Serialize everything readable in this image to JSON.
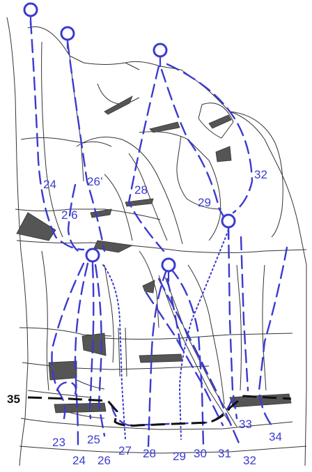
{
  "labels": {
    "r24_top": "24",
    "r26p": "26’",
    "r28_top": "28",
    "r29_top": "29",
    "r32_top": "32",
    "r2_6": "2 6",
    "r35": "35",
    "r23": "23",
    "r24_bot": "24",
    "r25": "25",
    "r26_bot": "26",
    "r27": "27",
    "r28_bot": "28",
    "r29_bot": "29",
    "r30": "30",
    "r31": "31",
    "r32_bot": "32",
    "r33": "33",
    "r34": "34"
  },
  "colors": {
    "route": "#3a3ad0",
    "rock_line": "#333333",
    "shadow": "#555555",
    "black_route": "#111111"
  }
}
